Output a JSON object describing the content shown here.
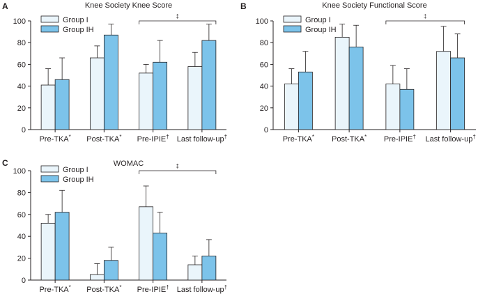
{
  "colors": {
    "group1": "#eaf5fb",
    "groupIH": "#7cc3ea",
    "stroke": "#231f20"
  },
  "chart_data": [
    {
      "panel": "A",
      "type": "bar",
      "title": "Knee Society Knee Score",
      "categories": [
        "Pre-TKA",
        "Post-TKA",
        "Pre-IPIE",
        "Last follow-up"
      ],
      "category_marks": [
        "*",
        "*",
        "†",
        "†"
      ],
      "ylim": [
        0,
        100
      ],
      "yticks": [
        0,
        20,
        40,
        60,
        80,
        100
      ],
      "series": [
        {
          "name": "Group I",
          "values": [
            41,
            66,
            52,
            58
          ],
          "errors": [
            15,
            11,
            8,
            13
          ]
        },
        {
          "name": "Group IH",
          "values": [
            46,
            87,
            62,
            82
          ],
          "errors": [
            20,
            10,
            20,
            15
          ]
        }
      ],
      "significance": {
        "from_category": 2,
        "to_category": 3,
        "label": "‡"
      },
      "legend": [
        "Group I",
        "Group IH"
      ],
      "legend_position": "top-left"
    },
    {
      "panel": "B",
      "type": "bar",
      "title": "Knee Society Functional Score",
      "categories": [
        "Pre-TKA",
        "Post-TKA",
        "Pre-IPIE",
        "Last follow-up"
      ],
      "category_marks": [
        "*",
        "*",
        "†",
        "†"
      ],
      "ylim": [
        0,
        100
      ],
      "yticks": [
        0,
        20,
        40,
        60,
        80,
        100
      ],
      "series": [
        {
          "name": "Group I",
          "values": [
            42,
            85,
            42,
            72
          ],
          "errors": [
            14,
            12,
            17,
            23
          ]
        },
        {
          "name": "Group IH",
          "values": [
            53,
            76,
            37,
            66
          ],
          "errors": [
            19,
            20,
            19,
            22
          ]
        }
      ],
      "significance": {
        "from_category": 2,
        "to_category": 3,
        "label": "‡"
      },
      "legend": [
        "Group I",
        "Group IH"
      ],
      "legend_position": "top-left"
    },
    {
      "panel": "C",
      "type": "bar",
      "title": "WOMAC",
      "categories": [
        "Pre-TKA",
        "Post-TKA",
        "Pre-IPIE",
        "Last follow-up"
      ],
      "category_marks": [
        "*",
        "*",
        "†",
        "†"
      ],
      "ylim": [
        0,
        100
      ],
      "yticks": [
        0,
        20,
        40,
        60,
        80,
        100
      ],
      "series": [
        {
          "name": "Group I",
          "values": [
            52,
            5,
            67,
            14
          ],
          "errors": [
            8,
            10,
            19,
            8
          ]
        },
        {
          "name": "Group IH",
          "values": [
            62,
            18,
            43,
            22
          ],
          "errors": [
            20,
            12,
            19,
            15
          ]
        }
      ],
      "significance": {
        "from_category": 2,
        "to_category": 3,
        "label": "‡"
      },
      "legend": [
        "Group I",
        "Group IH"
      ],
      "legend_position": "top-left"
    }
  ]
}
